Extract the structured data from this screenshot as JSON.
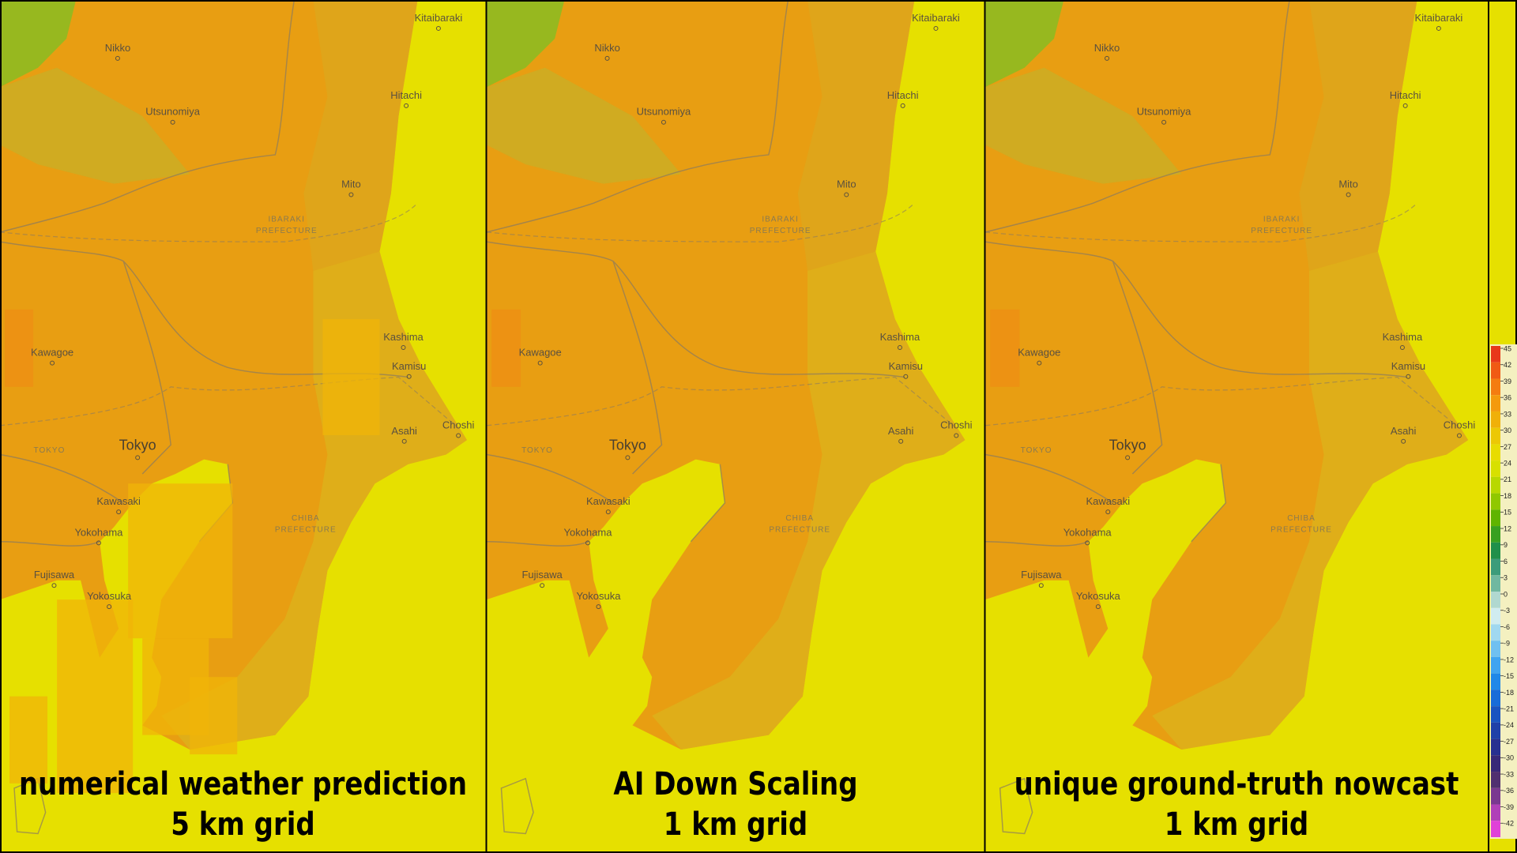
{
  "panels": [
    {
      "title": "numerical weather prediction",
      "subtitle": "5 km grid"
    },
    {
      "title": "AI Down Scaling",
      "subtitle": "1 km grid"
    },
    {
      "title": "unique ground-truth nowcast",
      "subtitle": "1 km grid"
    }
  ],
  "places": [
    "Kitaibaraki",
    "Nikko",
    "Utsunomiya",
    "Hitachi",
    "Mito",
    "IBARAKI",
    "PREFECTURE",
    "Kashima",
    "Kamisu",
    "Kawagoe",
    "Tokyo",
    "TOKYO",
    "Choshi",
    "Asahi",
    "Kawasaki",
    "Yokohama",
    "CHIBA",
    "PREFECTURE",
    "Fujisawa",
    "Yokosuka"
  ],
  "legend": {
    "ticks": [
      45,
      42,
      39,
      36,
      33,
      30,
      27,
      24,
      21,
      18,
      15,
      12,
      9,
      6,
      3,
      0,
      -3,
      -6,
      -9,
      -12,
      -15,
      -18,
      -21,
      -24,
      -27,
      -30,
      -33,
      -36,
      -39,
      -42
    ],
    "colors": [
      "#e8381a",
      "#f05a14",
      "#f47c10",
      "#f49a0c",
      "#f0b008",
      "#ecc804",
      "#e8dc00",
      "#d8e000",
      "#b8d800",
      "#90c800",
      "#60b400",
      "#38a020",
      "#20904a",
      "#3c9c7a",
      "#70b8a0",
      "#b0d8d0",
      "#d0ecf0",
      "#a0d8f0",
      "#70c0f0",
      "#40a4f0",
      "#2088e8",
      "#186cd8",
      "#1a54c0",
      "#2040a8",
      "#283090",
      "#382878",
      "#503070",
      "#7a3890",
      "#b040b8",
      "#e040d8"
    ]
  }
}
